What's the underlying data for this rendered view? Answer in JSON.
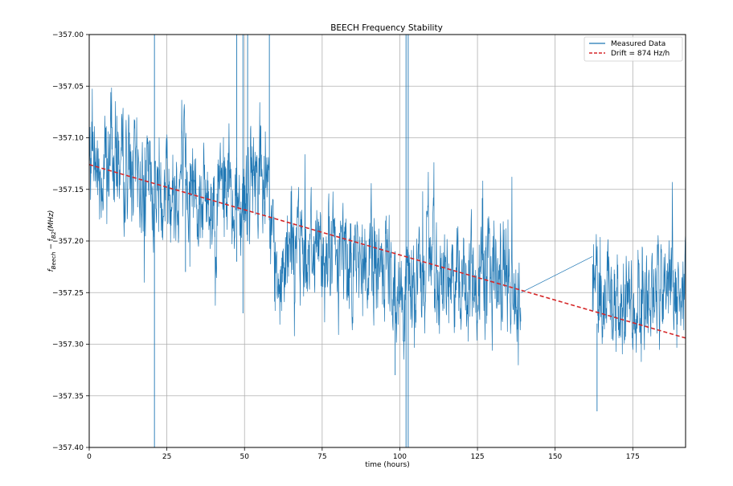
{
  "chart_data": {
    "type": "line",
    "title": "BEECH Frequency Stability",
    "xlabel": "time (hours)",
    "ylabel_main": "f",
    "ylabel_sub1": "Beech",
    "ylabel_mid": " − f",
    "ylabel_sub2": "B2",
    "ylabel_tail": "(MHz)",
    "xlim": [
      0,
      192
    ],
    "ylim": [
      -357.4,
      -357.0
    ],
    "xticks": [
      0,
      25,
      50,
      75,
      100,
      125,
      150,
      175
    ],
    "xtick_labels": [
      "0",
      "25",
      "50",
      "75",
      "100",
      "125",
      "150",
      "175"
    ],
    "yticks": [
      -357.4,
      -357.35,
      -357.3,
      -357.25,
      -357.2,
      -357.15,
      -357.1,
      -357.05,
      -357.0
    ],
    "ytick_labels": [
      "−357.40",
      "−357.35",
      "−357.30",
      "−357.25",
      "−357.20",
      "−357.15",
      "−357.10",
      "−357.05",
      "−357.00"
    ],
    "grid": true,
    "legend_position": "top-right",
    "series": [
      {
        "name": "Measured Data",
        "style": "solid",
        "color": "#1f77b4",
        "segments": [
          {
            "t_start": 0,
            "t_end": 139,
            "trend": [
              [
                0,
                -357.13
              ],
              [
                10,
                -357.12
              ],
              [
                20,
                -357.15
              ],
              [
                30,
                -357.14
              ],
              [
                40,
                -357.16
              ],
              [
                50,
                -357.15
              ],
              [
                55,
                -357.13
              ],
              [
                60,
                -357.22
              ],
              [
                70,
                -357.2
              ],
              [
                80,
                -357.21
              ],
              [
                90,
                -357.22
              ],
              [
                100,
                -357.25
              ],
              [
                110,
                -357.23
              ],
              [
                120,
                -357.24
              ],
              [
                130,
                -357.23
              ],
              [
                139,
                -357.24
              ]
            ],
            "amplitude": 0.045
          },
          {
            "t_start": 139,
            "t_end": 162,
            "trend": [
              [
                139,
                -357.25
              ],
              [
                162,
                -357.215
              ]
            ],
            "amplitude": 0.0
          },
          {
            "t_start": 162,
            "t_end": 192,
            "trend": [
              [
                162,
                -357.25
              ],
              [
                165,
                -357.24
              ],
              [
                170,
                -357.27
              ],
              [
                175,
                -357.25
              ],
              [
                180,
                -357.26
              ],
              [
                185,
                -357.24
              ],
              [
                192,
                -357.25
              ]
            ],
            "amplitude": 0.04
          }
        ],
        "spikes": [
          {
            "t": 21.0,
            "low": -357.4,
            "high": -357.0
          },
          {
            "t": 47.5,
            "low": -357.22,
            "high": -357.0
          },
          {
            "t": 49.5,
            "low": -357.27,
            "high": -357.0
          },
          {
            "t": 51.0,
            "low": -357.2,
            "high": -357.0
          },
          {
            "t": 58.0,
            "low": -357.18,
            "high": -357.0
          },
          {
            "t": 102.0,
            "low": -357.4,
            "high": -357.0
          },
          {
            "t": 102.7,
            "low": -357.4,
            "high": -357.0
          },
          {
            "t": 163.5,
            "low": -357.365,
            "high": -357.28
          },
          {
            "t": 31.0,
            "low": -357.23,
            "high": -357.14
          },
          {
            "t": 98.5,
            "low": -357.33,
            "high": -357.21
          }
        ]
      },
      {
        "name": "Drift = 874 Hz/h",
        "style": "dashed",
        "color": "#d62728",
        "x": [
          0,
          192
        ],
        "y": [
          -357.126,
          -357.294
        ]
      }
    ]
  }
}
